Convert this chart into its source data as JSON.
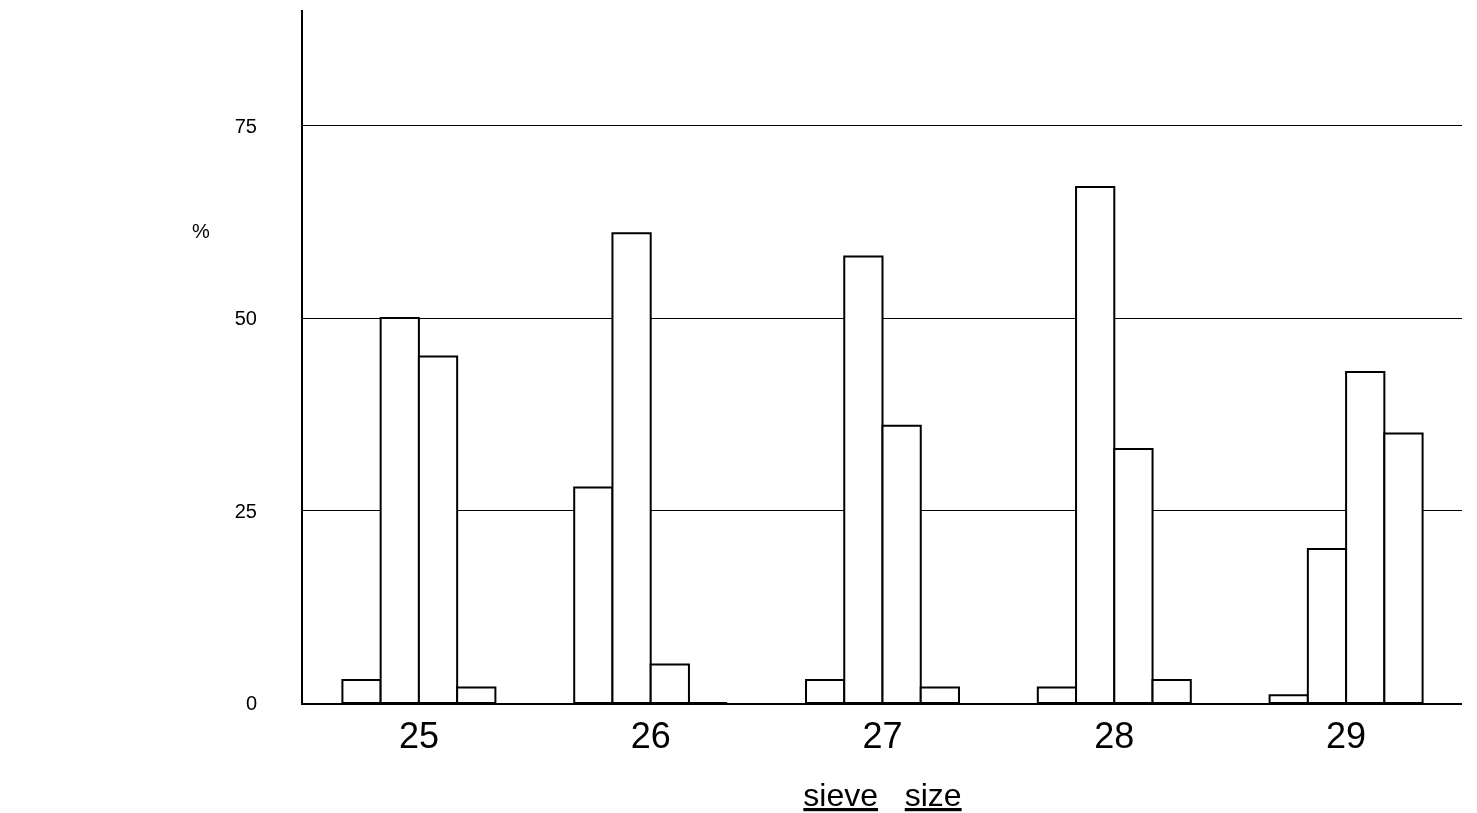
{
  "chart_data": {
    "type": "bar",
    "xlabel": "sieve size",
    "ylabel": "%",
    "categories": [
      "25",
      "26",
      "27",
      "28",
      "29"
    ],
    "series": [
      {
        "color": "#000000",
        "values": [
          3,
          28,
          3,
          2,
          1
        ]
      },
      {
        "color": "#000000",
        "values": [
          50,
          61,
          58,
          67,
          20
        ]
      },
      {
        "color": "#000000",
        "values": [
          45,
          5,
          36,
          33,
          43
        ]
      },
      {
        "color": "#000000",
        "values": [
          2,
          0,
          2,
          3,
          35
        ]
      }
    ],
    "ylim": [
      0,
      90
    ],
    "yticks": [
      0,
      25,
      50,
      75
    ],
    "grid": "y"
  }
}
